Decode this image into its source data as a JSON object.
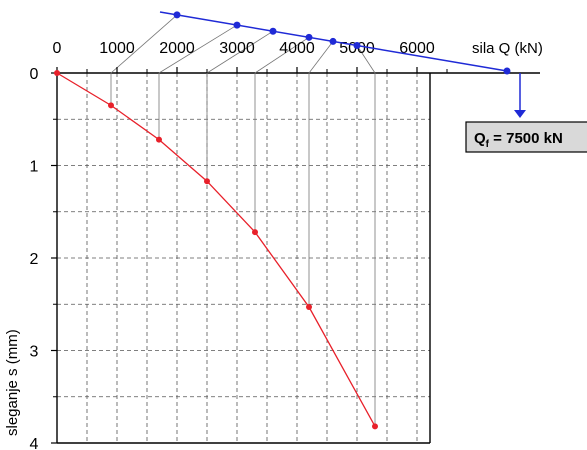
{
  "chart_data": {
    "type": "line",
    "x_axis": {
      "label": "sila Q (kN)",
      "ticks": [
        0,
        1000,
        2000,
        3000,
        4000,
        5000,
        6000
      ],
      "tick_labels": [
        "0",
        "1000",
        "2000",
        "3000",
        "4000",
        "5000",
        "6000"
      ],
      "range": [
        0,
        6000
      ],
      "position": "top"
    },
    "y_axis": {
      "label": "sleganje s (mm)",
      "ticks": [
        0,
        1,
        2,
        3,
        4
      ],
      "tick_labels": [
        "0",
        "1",
        "2",
        "3",
        "4"
      ],
      "range": [
        0,
        4
      ],
      "inverted": true
    },
    "grid": true,
    "series": [
      {
        "color": "#e8202a",
        "x": [
          0,
          900,
          1700,
          2500,
          3300,
          4200,
          5300
        ],
        "y": [
          0,
          0.35,
          0.72,
          1.17,
          1.72,
          2.53,
          3.82
        ]
      }
    ],
    "extrapolation_line": {
      "color": "#1f2ad6",
      "x": [
        2000,
        3000,
        3600,
        4200,
        4600,
        5000,
        7500
      ]
    },
    "annotation": {
      "text_main": "Q",
      "text_sub": "f",
      "text_rest": " = 7500 kN",
      "x": 7500
    }
  }
}
